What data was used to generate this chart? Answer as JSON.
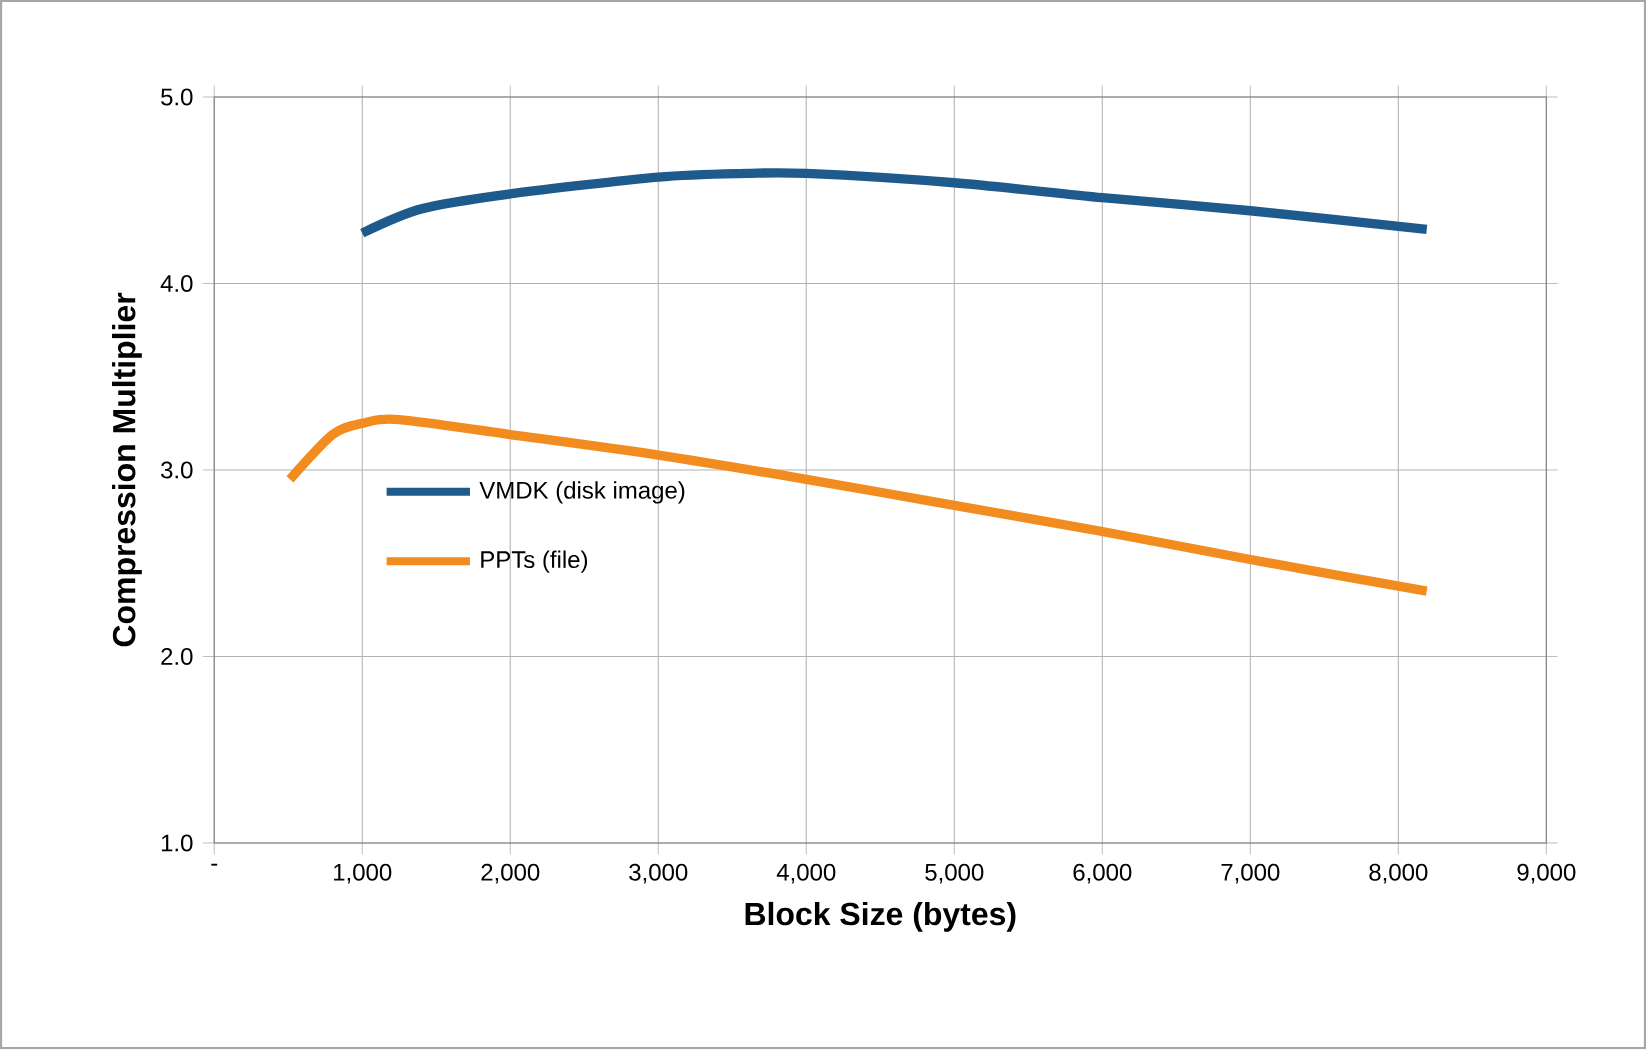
{
  "chart_data": {
    "type": "line",
    "xlabel": "Block Size (bytes)",
    "ylabel": "Compression Multiplier",
    "xlim": [
      0,
      9000
    ],
    "ylim": [
      1,
      5
    ],
    "xticks": [
      {
        "value": 0,
        "label": "-"
      },
      {
        "value": 1000,
        "label": "1,000"
      },
      {
        "value": 2000,
        "label": "2,000"
      },
      {
        "value": 3000,
        "label": "3,000"
      },
      {
        "value": 4000,
        "label": "4,000"
      },
      {
        "value": 5000,
        "label": "5,000"
      },
      {
        "value": 6000,
        "label": "6,000"
      },
      {
        "value": 7000,
        "label": "7,000"
      },
      {
        "value": 8000,
        "label": "8,000"
      },
      {
        "value": 9000,
        "label": "9,000"
      }
    ],
    "yticks": [
      {
        "value": 1,
        "label": "1.0"
      },
      {
        "value": 2,
        "label": "2.0"
      },
      {
        "value": 3,
        "label": "3.0"
      },
      {
        "value": 4,
        "label": "4.0"
      },
      {
        "value": 5,
        "label": "5.0"
      }
    ],
    "grid": true,
    "legend": "left",
    "marker": "none",
    "line_style": "solid",
    "series": [
      {
        "name": "VMDK (disk image)",
        "color": "#1f5a8c",
        "x": [
          1000,
          1400,
          2000,
          3000,
          3600,
          4000,
          5000,
          6000,
          7000,
          8192
        ],
        "values": [
          4.27,
          4.4,
          4.48,
          4.57,
          4.59,
          4.59,
          4.54,
          4.46,
          4.39,
          4.29
        ]
      },
      {
        "name": "PPTs (file)",
        "color": "#f28c1e",
        "x": [
          512,
          800,
          1000,
          1250,
          2000,
          3000,
          4000,
          5000,
          6000,
          7000,
          8192
        ],
        "values": [
          2.95,
          3.19,
          3.25,
          3.27,
          3.19,
          3.08,
          2.95,
          2.81,
          2.67,
          2.52,
          2.35
        ]
      }
    ]
  }
}
